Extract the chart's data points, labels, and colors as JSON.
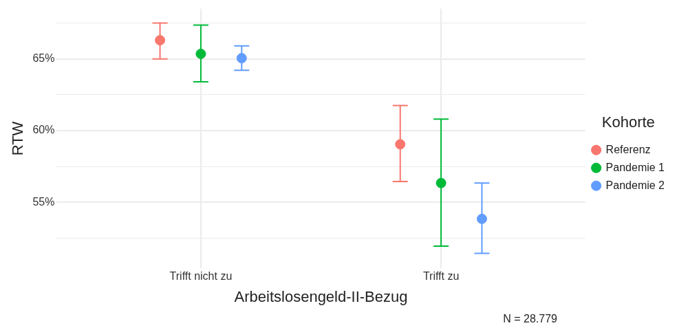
{
  "chart_data": {
    "type": "scatter",
    "xlabel": "Arbeitslosengeld-II-Bezug",
    "ylabel": "RTW",
    "legend_title": "Kohorte",
    "legend": "right",
    "grid": true,
    "marker": "circle",
    "categories": [
      "Trifft nicht zu",
      "Trifft zu"
    ],
    "ylim": [
      50.4,
      68.5
    ],
    "yticks": [
      {
        "value": 52.5,
        "label": null
      },
      {
        "value": 55,
        "label": "55%"
      },
      {
        "value": 57.5,
        "label": null
      },
      {
        "value": 60,
        "label": "60%"
      },
      {
        "value": 62.5,
        "label": null
      },
      {
        "value": 65,
        "label": "65%"
      },
      {
        "value": 67.5,
        "label": null
      }
    ],
    "series": [
      {
        "name": "Referenz",
        "color": "#f8766d",
        "values": [
          66.3,
          59.05
        ],
        "errors": [
          [
            65.0,
            67.5
          ],
          [
            56.45,
            61.75
          ]
        ]
      },
      {
        "name": "Pandemie 1",
        "color": "#00ba38",
        "values": [
          65.35,
          56.35
        ],
        "errors": [
          [
            63.4,
            67.35
          ],
          [
            51.95,
            60.8
          ]
        ]
      },
      {
        "name": "Pandemie 2",
        "color": "#619cff",
        "values": [
          65.05,
          53.85
        ],
        "errors": [
          [
            64.2,
            65.9
          ],
          [
            51.45,
            56.35
          ]
        ]
      }
    ],
    "annotations": [
      "N = 28.779"
    ]
  }
}
